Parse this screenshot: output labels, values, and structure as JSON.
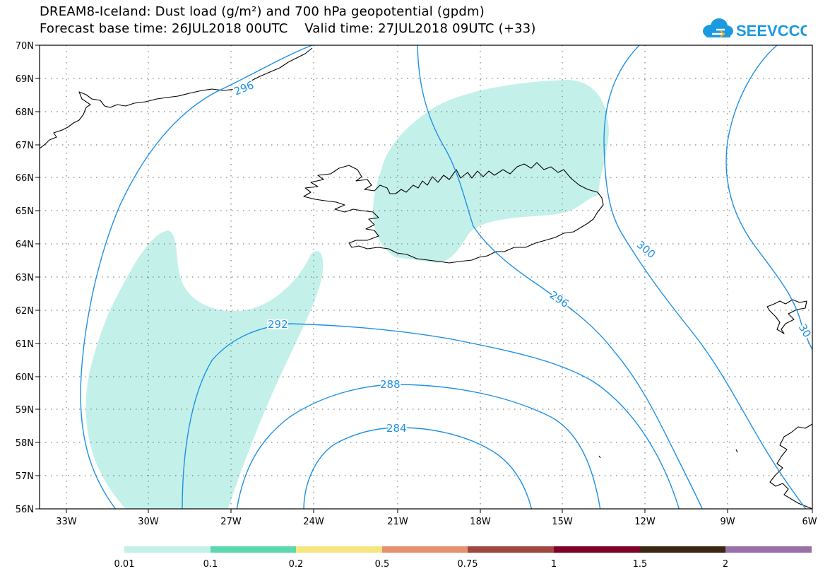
{
  "title_line1": "DREAM8-Iceland: Dust load (g/m²) and 700 hPa geopotential (gpdm)",
  "title_line2": "Forecast base time: 26JUL2018 00UTC    Valid time: 27JUL2018 09UTC (+33)",
  "logo_text": "SEEVCCC",
  "lat_labels": [
    "70N",
    "69N",
    "68N",
    "67N",
    "66N",
    "65N",
    "64N",
    "63N",
    "62N",
    "61N",
    "60N",
    "59N",
    "58N",
    "57N",
    "56N"
  ],
  "lon_labels": [
    "33W",
    "30W",
    "27W",
    "24W",
    "21W",
    "18W",
    "15W",
    "12W",
    "9W",
    "6W"
  ],
  "contour_labels": [
    {
      "text": "296"
    },
    {
      "text": "300"
    },
    {
      "text": "296"
    },
    {
      "text": "292"
    },
    {
      "text": "288"
    },
    {
      "text": "284"
    },
    {
      "text": "30"
    }
  ],
  "colors": {
    "contour": "#1e90e6",
    "dust_fill": "#c4f0ea",
    "coast": "#000000",
    "grid": "#666666"
  },
  "legend": {
    "labels": [
      "0.01",
      "0.1",
      "0.2",
      "0.5",
      "0.75",
      "1",
      "1.5",
      "2"
    ],
    "colors": [
      "#c4f0ea",
      "#5ad8b0",
      "#f5e680",
      "#e89070",
      "#a04840",
      "#800028",
      "#3a2812",
      "#9a70a8"
    ]
  }
}
